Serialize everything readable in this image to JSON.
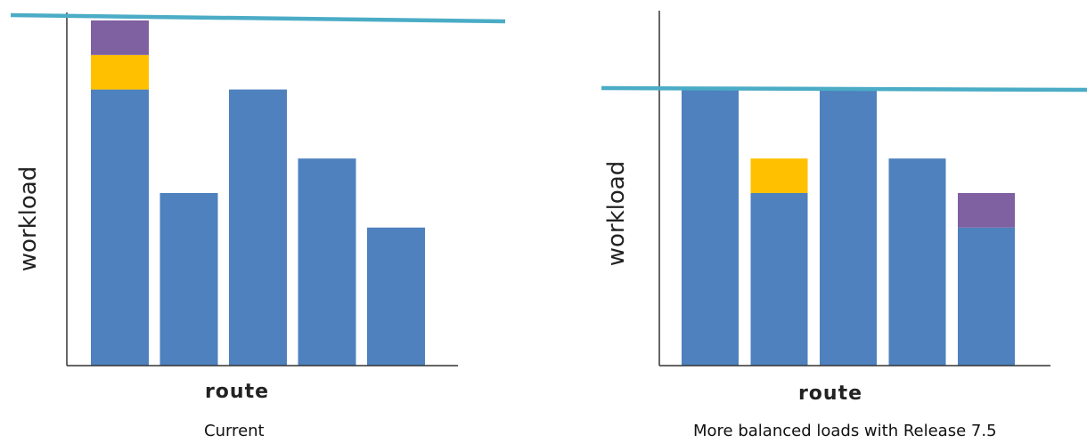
{
  "colors": {
    "base": "#4e81bd",
    "yellow": "#ffc000",
    "purple": "#7f60a0",
    "capacity": "#4bacc6",
    "axis": "#333333"
  },
  "chart_data": [
    {
      "type": "bar",
      "stacked": true,
      "caption": "Current",
      "xlabel": "route",
      "ylabel": "workload",
      "ylim": [
        0,
        100
      ],
      "capacity_line": 100,
      "categories": [
        "",
        "",
        "",
        "",
        ""
      ],
      "series": [
        {
          "color_key": "base",
          "values": [
            80,
            50,
            80,
            60,
            40
          ]
        },
        {
          "color_key": "yellow",
          "values": [
            10,
            0,
            0,
            0,
            0
          ]
        },
        {
          "color_key": "purple",
          "values": [
            10,
            0,
            0,
            0,
            0
          ]
        }
      ]
    },
    {
      "type": "bar",
      "stacked": true,
      "caption": "More balanced loads with Release 7.5",
      "xlabel": "route",
      "ylabel": "workload",
      "ylim": [
        0,
        100
      ],
      "capacity_line": 80,
      "categories": [
        "",
        "",
        "",
        "",
        ""
      ],
      "series": [
        {
          "color_key": "base",
          "values": [
            80,
            50,
            80,
            60,
            40
          ]
        },
        {
          "color_key": "yellow",
          "values": [
            0,
            10,
            0,
            0,
            0
          ]
        },
        {
          "color_key": "purple",
          "values": [
            0,
            0,
            0,
            0,
            10
          ]
        }
      ]
    }
  ]
}
